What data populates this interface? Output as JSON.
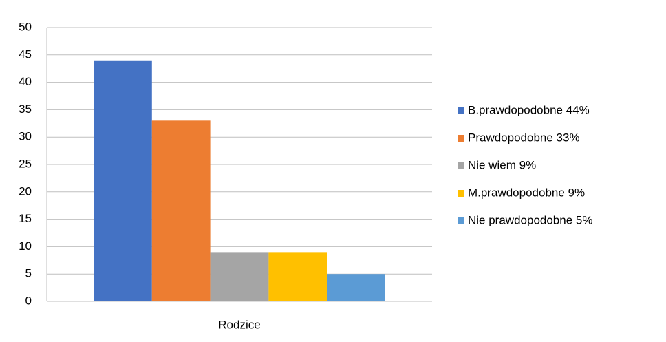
{
  "chart_data": {
    "type": "bar",
    "categories": [
      "Rodzice"
    ],
    "series": [
      {
        "name": "B.prawdopodobne 44%",
        "color": "#4472c4",
        "values": [
          44
        ]
      },
      {
        "name": "Prawdopodobne 33%",
        "color": "#ed7d31",
        "values": [
          33
        ]
      },
      {
        "name": "Nie wiem 9%",
        "color": "#a5a5a5",
        "values": [
          9
        ]
      },
      {
        "name": "M.prawdopodobne 9%",
        "color": "#ffc000",
        "values": [
          9
        ]
      },
      {
        "name": "Nie prawdopodobne 5%",
        "color": "#5b9bd5",
        "values": [
          5
        ]
      }
    ],
    "ylim": [
      0,
      50
    ],
    "yticks": [
      0,
      5,
      10,
      15,
      20,
      25,
      30,
      35,
      40,
      45,
      50
    ],
    "grid": true,
    "legend": "right"
  }
}
